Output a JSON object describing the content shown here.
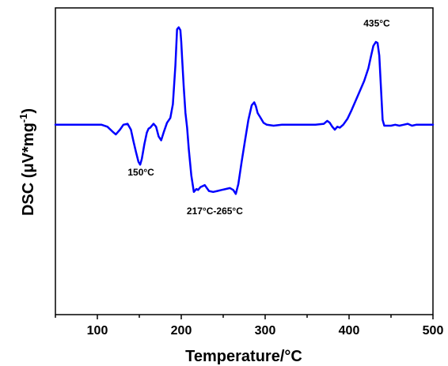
{
  "chart_data": {
    "type": "line",
    "xlabel": "Temperature/°C",
    "ylabel": "DSC (μV*mg",
    "ylabel_sup": "-1",
    "ylabel_end": ")",
    "xlim": [
      50,
      500
    ],
    "ylim": [
      -1.95,
      1.2
    ],
    "xticks": [
      "100",
      "200",
      "300",
      "400",
      "500"
    ],
    "grid": false,
    "line_color": "#0000ff",
    "series": [
      {
        "x": [
          50,
          70,
          90,
          105,
          112,
          118,
          122,
          127,
          131,
          136,
          140,
          143,
          146,
          149,
          151,
          153,
          156,
          159,
          161,
          163,
          167,
          170,
          173,
          176,
          179,
          183,
          187,
          190,
          193,
          195,
          197,
          199,
          200,
          201,
          203,
          205,
          207,
          209,
          212,
          215,
          218,
          220,
          223,
          228,
          233,
          238,
          243,
          248,
          253,
          258,
          262,
          265,
          268,
          272,
          276,
          280,
          284,
          287,
          289,
          291,
          294,
          298,
          302,
          310,
          320,
          330,
          340,
          350,
          360,
          370,
          374,
          377,
          380,
          383,
          386,
          389,
          393,
          398,
          403,
          408,
          413,
          418,
          423,
          426,
          429,
          432,
          434,
          436,
          438,
          440,
          442,
          445,
          450,
          455,
          460,
          465,
          470,
          475,
          480,
          490,
          500
        ],
        "y": [
          0,
          0,
          0,
          0,
          -0.02,
          -0.07,
          -0.1,
          -0.05,
          0,
          0.01,
          -0.05,
          -0.17,
          -0.28,
          -0.38,
          -0.41,
          -0.35,
          -0.2,
          -0.08,
          -0.04,
          -0.03,
          0.01,
          -0.02,
          -0.12,
          -0.16,
          -0.08,
          0.02,
          0.07,
          0.21,
          0.61,
          0.98,
          1.0,
          0.97,
          0.85,
          0.68,
          0.38,
          0.12,
          -0.03,
          -0.25,
          -0.52,
          -0.69,
          -0.66,
          -0.67,
          -0.64,
          -0.62,
          -0.68,
          -0.69,
          -0.68,
          -0.67,
          -0.66,
          -0.65,
          -0.67,
          -0.71,
          -0.61,
          -0.38,
          -0.16,
          0.05,
          0.2,
          0.23,
          0.19,
          0.12,
          0.08,
          0.02,
          0,
          -0.01,
          0,
          0,
          0,
          0,
          0,
          0.01,
          0.04,
          0.02,
          -0.02,
          -0.05,
          -0.02,
          -0.03,
          0,
          0.06,
          0.15,
          0.25,
          0.35,
          0.45,
          0.58,
          0.7,
          0.81,
          0.85,
          0.84,
          0.71,
          0.38,
          0.05,
          -0.01,
          -0.01,
          -0.01,
          0,
          -0.01,
          0,
          0.01,
          -0.01,
          0,
          0,
          0
        ]
      }
    ],
    "annotations": [
      {
        "text": "150°C",
        "x": 152,
        "y": -0.52
      },
      {
        "text": "217°C-265°C",
        "x": 240,
        "y": -0.92
      },
      {
        "text": "435°C",
        "x": 433,
        "y": 1.01
      }
    ]
  }
}
